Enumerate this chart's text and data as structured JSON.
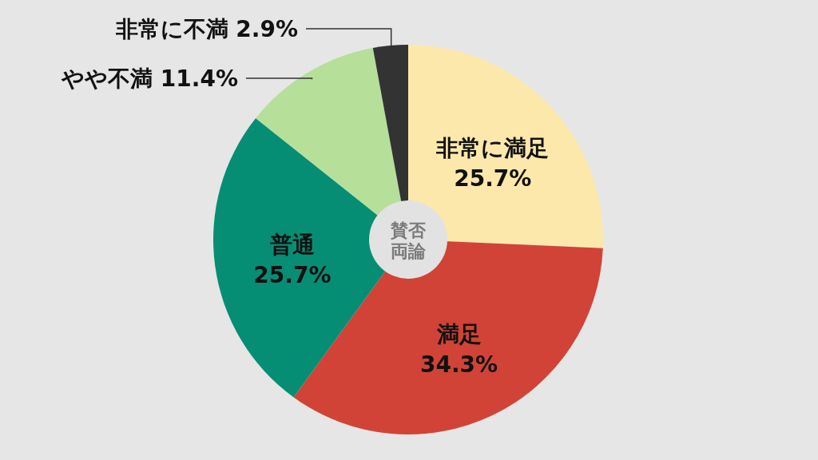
{
  "chart_data": {
    "type": "donut",
    "title": "賛否両論",
    "categories": [
      "非常に満足",
      "満足",
      "普通",
      "やや不満",
      "非常に不満"
    ],
    "values": [
      25.7,
      34.3,
      25.7,
      11.4,
      2.9
    ],
    "colors": [
      "#fce8ab",
      "#d14336",
      "#068e74",
      "#b6df99",
      "#333333"
    ],
    "value_labels": [
      "25.7%",
      "34.3%",
      "25.7%",
      "11.4%",
      "2.9%"
    ]
  }
}
